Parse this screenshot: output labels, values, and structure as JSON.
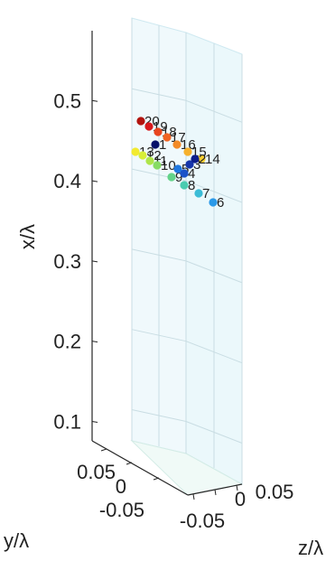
{
  "chart_data": {
    "type": "scatter",
    "subtype": "3d-scatter",
    "title": "",
    "xlabel": "x/λ",
    "ylabel": "y/λ",
    "zlabel": "z/λ",
    "axes": {
      "x": {
        "ticks": [
          "0.1",
          "0.2",
          "0.3",
          "0.4",
          "0.5"
        ],
        "range": [
          0.06,
          0.56
        ]
      },
      "y": {
        "ticks": [
          "0.05",
          "0",
          "-0.05"
        ]
      },
      "z": {
        "ticks": [
          "-0.05",
          "0",
          "0.05"
        ]
      }
    },
    "grid": true,
    "colormap": "jet",
    "series": [
      {
        "points": [
          {
            "label": "20",
            "x": 0.462,
            "color": "#b2140e"
          },
          {
            "label": "19",
            "x": 0.458,
            "color": "#d7191c"
          },
          {
            "label": "18",
            "x": 0.452,
            "color": "#e8451e"
          },
          {
            "label": "17",
            "x": 0.447,
            "color": "#f06423"
          },
          {
            "label": "16",
            "x": 0.44,
            "color": "#f38a26"
          },
          {
            "label": "15",
            "x": 0.434,
            "color": "#f6b02b"
          },
          {
            "label": "14",
            "x": 0.43,
            "color": "#f8d030"
          },
          {
            "label": "13",
            "x": 0.427,
            "color": "#f2ea2f"
          },
          {
            "label": "12",
            "x": 0.424,
            "color": "#d8ee37"
          },
          {
            "label": "11",
            "x": 0.42,
            "color": "#aee54a"
          },
          {
            "label": "10",
            "x": 0.417,
            "color": "#86dc64"
          },
          {
            "label": "9",
            "x": 0.413,
            "color": "#63d389"
          },
          {
            "label": "8",
            "x": 0.409,
            "color": "#49cbb0"
          },
          {
            "label": "7",
            "x": 0.404,
            "color": "#3bbcd6"
          },
          {
            "label": "6",
            "x": 0.398,
            "color": "#2a99e8"
          },
          {
            "label": "5",
            "x": 0.412,
            "color": "#1f77df"
          },
          {
            "label": "4",
            "x": 0.417,
            "color": "#1a52c8"
          },
          {
            "label": "3",
            "x": 0.421,
            "color": "#1535ab"
          },
          {
            "label": "2",
            "x": 0.425,
            "color": "#0d1e8c"
          },
          {
            "label": "1",
            "x": 0.43,
            "color": "#06116a"
          }
        ]
      }
    ]
  }
}
